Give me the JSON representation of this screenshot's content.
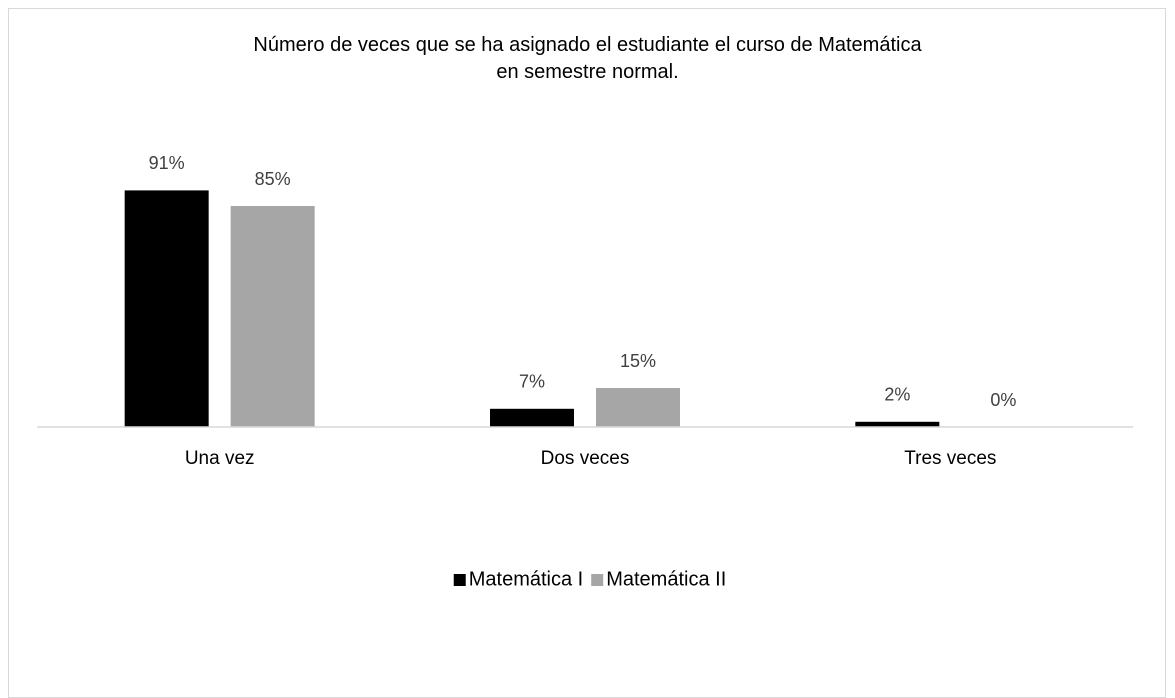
{
  "chart_data": {
    "type": "bar",
    "title": "Número de veces que se ha asignado el estudiante el curso de Matemática\nen semestre normal.",
    "categories": [
      "Una vez",
      "Dos veces",
      "Tres veces"
    ],
    "series": [
      {
        "name": "Matemática I",
        "color": "#000000",
        "values": [
          91,
          7,
          2
        ],
        "value_labels": [
          "91%",
          "7%",
          "2%"
        ]
      },
      {
        "name": "Matemática II",
        "color": "#a6a6a6",
        "values": [
          85,
          15,
          0
        ],
        "value_labels": [
          "85%",
          "15%",
          "0%"
        ]
      }
    ],
    "ylim": [
      0,
      100
    ],
    "legend": "bottom"
  }
}
